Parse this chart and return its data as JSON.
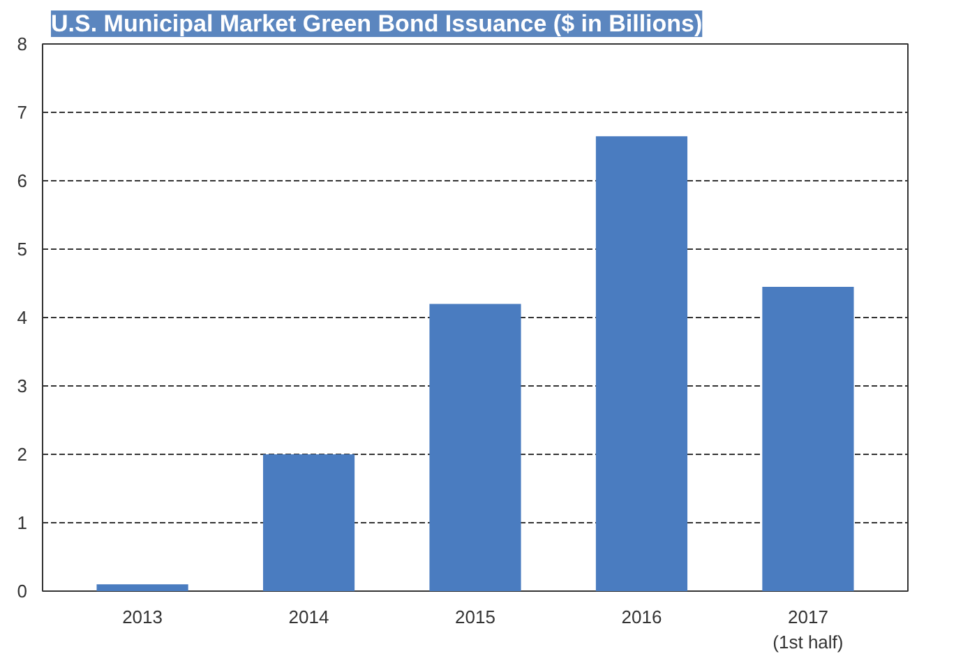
{
  "chart_data": {
    "type": "bar",
    "title": "U.S. Municipal Market Green Bond Issuance ($ in Billions)",
    "categories": [
      "2013",
      "2014",
      "2015",
      "2016",
      "2017\n(1st half)"
    ],
    "values": [
      0.1,
      2.0,
      4.2,
      6.65,
      4.45
    ],
    "color": "#4a7cc0",
    "ylim": [
      0,
      8
    ],
    "yticks": [
      0,
      1,
      2,
      3,
      4,
      5,
      6,
      7,
      8
    ],
    "grid": "y"
  }
}
